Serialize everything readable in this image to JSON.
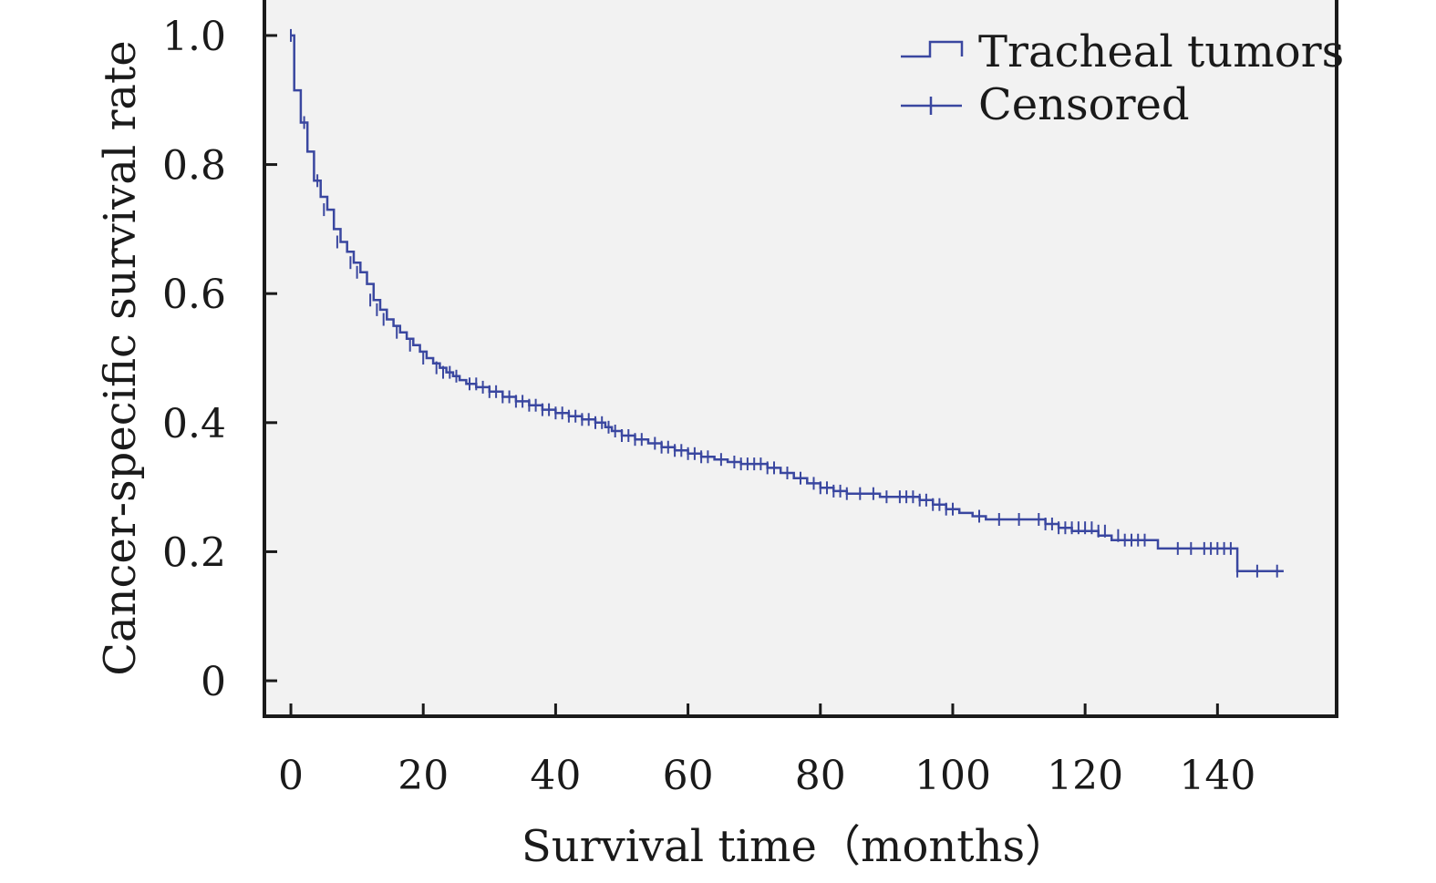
{
  "chart_data": {
    "type": "line",
    "subtype": "kaplan-meier",
    "xlabel": "Survival time（months）",
    "ylabel": "Cancer-specific survival rate",
    "xlim": [
      -4,
      158
    ],
    "ylim": [
      -0.055,
      1.055
    ],
    "xticks": [
      0,
      20,
      40,
      60,
      80,
      100,
      120,
      140
    ],
    "xtick_labels": [
      "0",
      "20",
      "40",
      "60",
      "80",
      "100",
      "120",
      "140"
    ],
    "yticks": [
      0,
      0.2,
      0.4,
      0.6,
      0.8,
      1.0
    ],
    "ytick_labels": [
      "0",
      "0.2",
      "0.4",
      "0.6",
      "0.8",
      "1.0"
    ],
    "grid": false,
    "legend_position": "top-right",
    "colors": {
      "series": "#3a47a0",
      "plot_background": "#f2f2f2",
      "axis": "#1a1a1a"
    },
    "series": [
      {
        "name": "Tracheal tumors",
        "x": [
          0,
          0.5,
          1.5,
          2.5,
          3.5,
          4.5,
          5.5,
          6.5,
          7.5,
          8.5,
          9.5,
          10.5,
          11.5,
          12.5,
          13.5,
          14.5,
          15.5,
          16.5,
          17.5,
          18.5,
          19.5,
          20.5,
          21.5,
          22.5,
          23.5,
          24.5,
          25.5,
          26.5,
          28,
          30,
          32,
          34,
          36,
          38,
          40,
          42,
          44,
          46,
          47.5,
          48.5,
          50,
          52,
          54,
          56,
          58,
          60,
          62,
          64,
          66,
          68,
          72,
          74,
          76,
          78,
          80,
          82,
          84,
          89,
          95,
          97,
          99,
          101,
          103,
          105,
          114,
          116,
          118,
          122,
          124,
          131,
          143,
          150
        ],
        "y": [
          1.0,
          0.915,
          0.865,
          0.82,
          0.775,
          0.75,
          0.73,
          0.7,
          0.68,
          0.665,
          0.648,
          0.633,
          0.615,
          0.59,
          0.575,
          0.56,
          0.55,
          0.54,
          0.53,
          0.52,
          0.51,
          0.5,
          0.492,
          0.485,
          0.478,
          0.472,
          0.466,
          0.46,
          0.455,
          0.448,
          0.44,
          0.433,
          0.427,
          0.42,
          0.415,
          0.41,
          0.405,
          0.4,
          0.393,
          0.387,
          0.38,
          0.374,
          0.368,
          0.362,
          0.357,
          0.352,
          0.347,
          0.343,
          0.339,
          0.336,
          0.33,
          0.322,
          0.314,
          0.306,
          0.299,
          0.294,
          0.29,
          0.285,
          0.28,
          0.273,
          0.266,
          0.26,
          0.255,
          0.25,
          0.243,
          0.237,
          0.232,
          0.225,
          0.218,
          0.205,
          0.17,
          0.17
        ]
      }
    ],
    "censored": {
      "name": "Censored",
      "x": [
        0,
        2,
        4,
        5,
        7,
        9,
        10,
        12,
        13,
        14,
        16,
        18,
        20,
        22,
        23,
        24,
        25,
        27,
        28,
        29,
        30,
        31,
        32,
        33,
        34,
        35,
        36,
        37,
        38,
        39,
        40,
        41,
        42,
        43,
        44,
        45,
        46,
        47,
        48,
        49,
        50,
        51,
        52,
        53,
        55,
        56,
        57,
        58,
        59,
        60,
        61,
        62,
        63,
        65,
        67,
        68,
        69,
        70,
        71,
        72,
        73,
        75,
        77,
        79,
        80,
        81,
        82,
        83,
        84,
        86,
        88,
        90,
        92,
        93,
        94,
        95,
        96,
        97,
        98,
        99,
        100,
        104,
        107,
        110,
        113,
        114,
        115,
        116,
        117,
        118,
        119,
        120,
        121,
        122,
        123,
        125,
        126,
        127,
        128,
        129,
        134,
        136,
        138,
        139,
        140,
        141,
        142,
        143,
        146,
        149
      ],
      "y": [
        1.0,
        0.865,
        0.775,
        0.73,
        0.68,
        0.648,
        0.633,
        0.59,
        0.575,
        0.56,
        0.54,
        0.52,
        0.5,
        0.485,
        0.478,
        0.478,
        0.472,
        0.46,
        0.46,
        0.455,
        0.448,
        0.448,
        0.44,
        0.44,
        0.433,
        0.433,
        0.427,
        0.427,
        0.42,
        0.42,
        0.415,
        0.415,
        0.41,
        0.41,
        0.405,
        0.405,
        0.4,
        0.4,
        0.393,
        0.387,
        0.38,
        0.38,
        0.374,
        0.374,
        0.368,
        0.362,
        0.362,
        0.357,
        0.357,
        0.352,
        0.352,
        0.347,
        0.347,
        0.343,
        0.339,
        0.336,
        0.336,
        0.336,
        0.336,
        0.33,
        0.33,
        0.322,
        0.314,
        0.306,
        0.299,
        0.299,
        0.294,
        0.294,
        0.29,
        0.29,
        0.29,
        0.285,
        0.285,
        0.285,
        0.285,
        0.28,
        0.28,
        0.273,
        0.273,
        0.266,
        0.266,
        0.255,
        0.25,
        0.25,
        0.25,
        0.243,
        0.243,
        0.237,
        0.237,
        0.237,
        0.237,
        0.237,
        0.237,
        0.232,
        0.232,
        0.225,
        0.218,
        0.218,
        0.218,
        0.218,
        0.205,
        0.205,
        0.205,
        0.205,
        0.205,
        0.205,
        0.205,
        0.17,
        0.17,
        0.17
      ]
    },
    "legend": [
      {
        "label": "Tracheal tumors",
        "marker": "step"
      },
      {
        "label": "Censored",
        "marker": "plus"
      }
    ]
  }
}
